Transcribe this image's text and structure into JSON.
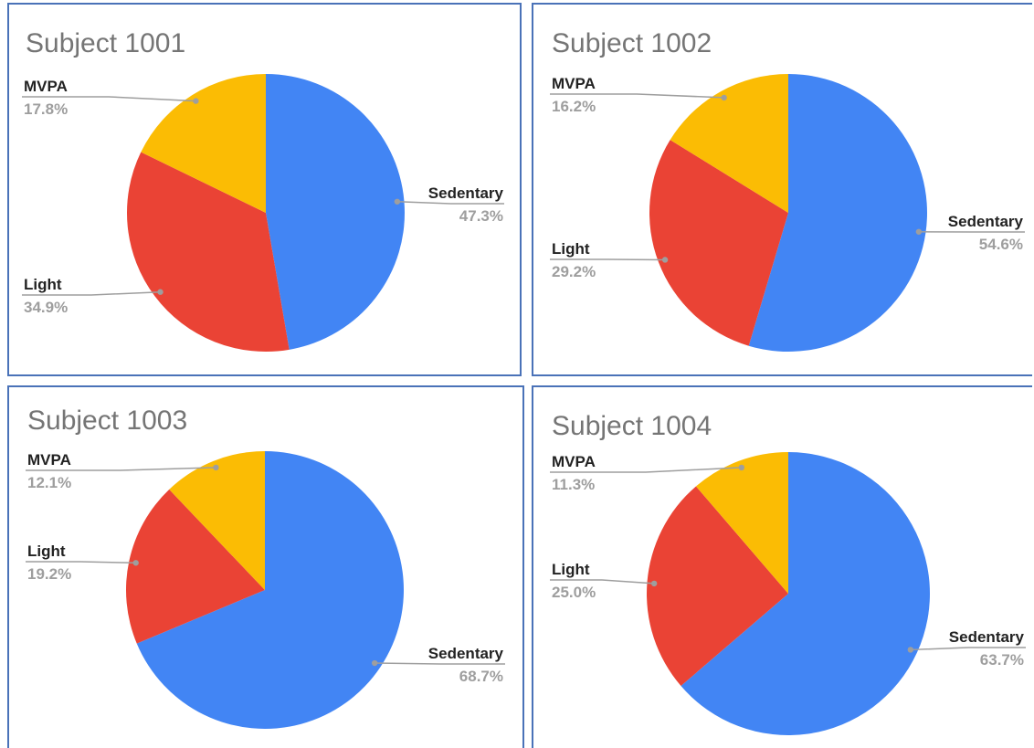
{
  "chart_data": [
    {
      "type": "pie",
      "title": "Subject 1001",
      "categories": [
        "Sedentary",
        "Light",
        "MVPA"
      ],
      "values": [
        47.3,
        34.9,
        17.8
      ],
      "labels": [
        "47.3%",
        "34.9%",
        "17.8%"
      ],
      "colors": [
        "#4285f4",
        "#ea4335",
        "#fbbc04"
      ]
    },
    {
      "type": "pie",
      "title": "Subject 1002",
      "categories": [
        "Sedentary",
        "Light",
        "MVPA"
      ],
      "values": [
        54.6,
        29.2,
        16.2
      ],
      "labels": [
        "54.6%",
        "29.2%",
        "16.2%"
      ],
      "colors": [
        "#4285f4",
        "#ea4335",
        "#fbbc04"
      ]
    },
    {
      "type": "pie",
      "title": "Subject 1003",
      "categories": [
        "Sedentary",
        "Light",
        "MVPA"
      ],
      "values": [
        68.7,
        19.2,
        12.1
      ],
      "labels": [
        "68.7%",
        "19.2%",
        "12.1%"
      ],
      "colors": [
        "#4285f4",
        "#ea4335",
        "#fbbc04"
      ]
    },
    {
      "type": "pie",
      "title": "Subject 1004",
      "categories": [
        "Sedentary",
        "Light",
        "MVPA"
      ],
      "values": [
        63.7,
        25.0,
        11.3
      ],
      "labels": [
        "63.7%",
        "25.0%",
        "11.3%"
      ],
      "colors": [
        "#4285f4",
        "#ea4335",
        "#fbbc04"
      ]
    }
  ]
}
